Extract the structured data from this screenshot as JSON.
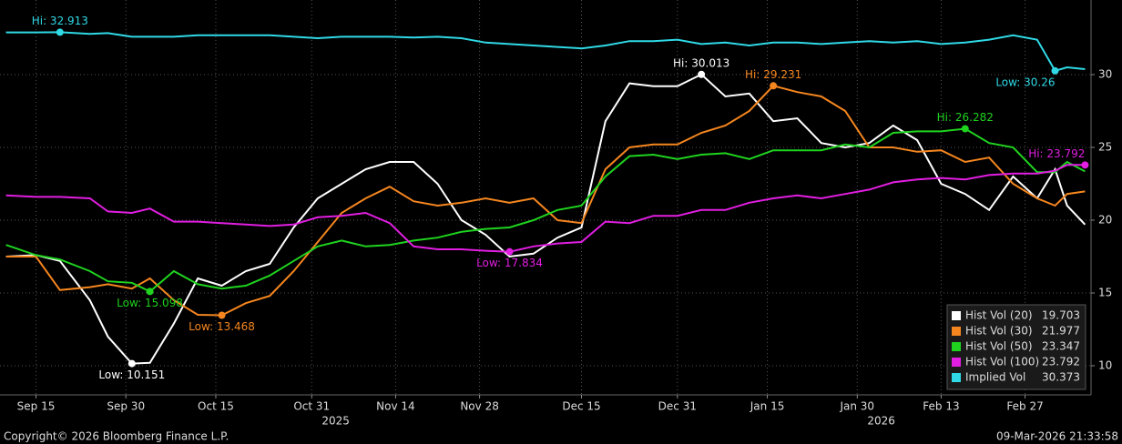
{
  "chart_data": {
    "type": "line",
    "x": [
      "2025-09-10",
      "2025-09-15",
      "2025-09-19",
      "2025-09-24",
      "2025-09-27",
      "2025-10-01",
      "2025-10-04",
      "2025-10-08",
      "2025-10-12",
      "2025-10-16",
      "2025-10-20",
      "2025-10-24",
      "2025-10-28",
      "2025-11-01",
      "2025-11-05",
      "2025-11-09",
      "2025-11-13",
      "2025-11-17",
      "2025-11-21",
      "2025-11-25",
      "2025-11-29",
      "2025-12-03",
      "2025-12-07",
      "2025-12-11",
      "2025-12-15",
      "2025-12-19",
      "2025-12-23",
      "2025-12-27",
      "2025-12-31",
      "2026-01-04",
      "2026-01-08",
      "2026-01-12",
      "2026-01-16",
      "2026-01-20",
      "2026-01-24",
      "2026-01-28",
      "2026-02-01",
      "2026-02-05",
      "2026-02-09",
      "2026-02-13",
      "2026-02-17",
      "2026-02-21",
      "2026-02-25",
      "2026-03-01",
      "2026-03-04",
      "2026-03-06",
      "2026-03-09"
    ],
    "series": [
      {
        "name": "Hist Vol (20)",
        "color": "#ffffff",
        "values": [
          17.5,
          17.6,
          17.2,
          14.5,
          12,
          10.151,
          10.2,
          12.9,
          16,
          15.5,
          16.5,
          17,
          19.5,
          21.5,
          22.5,
          23.5,
          24,
          24,
          22.5,
          20,
          19,
          17.5,
          17.7,
          18.8,
          19.5,
          26.8,
          29.4,
          29.2,
          29.2,
          30.013,
          28.5,
          28.7,
          26.8,
          27,
          25.3,
          25,
          25.3,
          26.5,
          25.5,
          22.5,
          21.8,
          20.7,
          23,
          21.5,
          23.5,
          21,
          19.703
        ]
      },
      {
        "name": "Hist Vol (30)",
        "color": "#f5861f",
        "values": [
          17.5,
          17.5,
          15.2,
          15.4,
          15.6,
          15.3,
          16,
          14.5,
          13.5,
          13.468,
          14.3,
          14.8,
          16.5,
          18.5,
          20.5,
          21.5,
          22.3,
          21.3,
          21,
          21.2,
          21.5,
          21.2,
          21.5,
          20,
          19.8,
          23.5,
          25,
          25.2,
          25.2,
          26,
          26.5,
          27.5,
          29.231,
          28.8,
          28.5,
          27.5,
          25,
          25,
          24.7,
          24.8,
          24,
          24.3,
          22.5,
          21.5,
          21,
          21.8,
          21.977
        ]
      },
      {
        "name": "Hist Vol (50)",
        "color": "#1fd31f",
        "values": [
          18.3,
          17.6,
          17.3,
          16.5,
          15.8,
          15.7,
          15.098,
          16.5,
          15.6,
          15.3,
          15.5,
          16.2,
          17.2,
          18.2,
          18.6,
          18.2,
          18.3,
          18.6,
          18.8,
          19.2,
          19.4,
          19.5,
          20,
          20.7,
          21,
          23,
          24.4,
          24.5,
          24.2,
          24.5,
          24.6,
          24.2,
          24.8,
          24.8,
          24.8,
          25.2,
          25,
          26,
          26.1,
          26.1,
          26.282,
          25.3,
          25,
          23.3,
          23.3,
          24,
          23.347
        ]
      },
      {
        "name": "Hist Vol (100)",
        "color": "#e11ee1",
        "values": [
          21.7,
          21.6,
          21.6,
          21.5,
          20.6,
          20.5,
          20.8,
          19.9,
          19.9,
          19.8,
          19.7,
          19.6,
          19.7,
          20.2,
          20.3,
          20.5,
          19.8,
          18.2,
          18,
          18,
          17.9,
          17.834,
          18.2,
          18.4,
          18.5,
          19.9,
          19.8,
          20.3,
          20.3,
          20.7,
          20.7,
          21.2,
          21.5,
          21.7,
          21.5,
          21.8,
          22.1,
          22.6,
          22.8,
          22.9,
          22.8,
          23.1,
          23.2,
          23.2,
          23.4,
          23.8,
          23.792
        ]
      },
      {
        "name": "Implied Vol",
        "color": "#2fd9e6",
        "values": [
          32.9,
          32.9,
          32.913,
          32.8,
          32.85,
          32.6,
          32.6,
          32.6,
          32.7,
          32.7,
          32.7,
          32.7,
          32.6,
          32.5,
          32.6,
          32.6,
          32.6,
          32.55,
          32.6,
          32.5,
          32.2,
          32.1,
          32,
          31.9,
          31.8,
          32,
          32.3,
          32.3,
          32.4,
          32.1,
          32.2,
          32,
          32.2,
          32.2,
          32.1,
          32.2,
          32.3,
          32.2,
          32.3,
          32.1,
          32.2,
          32.4,
          32.7,
          32.4,
          30.26,
          30.5,
          30.373
        ]
      }
    ],
    "annotations": [
      {
        "series": 4,
        "x": "2025-09-19",
        "value": 32.913,
        "label": "Hi: 32.913"
      },
      {
        "series": 4,
        "x": "2026-03-04",
        "value": 30.26,
        "label": "Low: 30.26"
      },
      {
        "series": 0,
        "x": "2026-01-04",
        "value": 30.013,
        "label": "Hi: 30.013"
      },
      {
        "series": 0,
        "x": "2025-10-01",
        "value": 10.151,
        "label": "Low: 10.151"
      },
      {
        "series": 1,
        "x": "2026-01-16",
        "value": 29.231,
        "label": "Hi: 29.231"
      },
      {
        "series": 1,
        "x": "2025-10-16",
        "value": 13.468,
        "label": "Low: 13.468"
      },
      {
        "series": 2,
        "x": "2026-02-17",
        "value": 26.282,
        "label": "Hi: 26.282"
      },
      {
        "series": 2,
        "x": "2025-10-04",
        "value": 15.098,
        "label": "Low: 15.098"
      },
      {
        "series": 3,
        "x": "2026-03-09",
        "value": 23.792,
        "label": "Hi: 23.792"
      },
      {
        "series": 3,
        "x": "2025-12-03",
        "value": 17.834,
        "label": "Low: 17.834"
      }
    ],
    "xlim": [
      "2025-09-09",
      "2026-03-10"
    ],
    "xticks": [
      {
        "value": "2025-09-15",
        "label": "Sep 15"
      },
      {
        "value": "2025-09-30",
        "label": "Sep 30"
      },
      {
        "value": "2025-10-15",
        "label": "Oct 15"
      },
      {
        "value": "2025-10-31",
        "label": "Oct 31"
      },
      {
        "value": "2025-11-14",
        "label": "Nov 14"
      },
      {
        "value": "2025-11-28",
        "label": "Nov 28"
      },
      {
        "value": "2025-12-15",
        "label": "Dec 15"
      },
      {
        "value": "2025-12-31",
        "label": "Dec 31"
      },
      {
        "value": "2026-01-15",
        "label": "Jan 15"
      },
      {
        "value": "2026-01-30",
        "label": "Jan 30"
      },
      {
        "value": "2026-02-13",
        "label": "Feb 13"
      },
      {
        "value": "2026-02-27",
        "label": "Feb 27"
      }
    ],
    "x_year_labels": [
      {
        "value": "2025-11-04",
        "label": "2025"
      },
      {
        "value": "2026-02-03",
        "label": "2026"
      }
    ],
    "ylim": [
      8,
      35.125
    ],
    "yticks": [
      10,
      15,
      20,
      25,
      30
    ],
    "grid": true,
    "legend": "lower right",
    "copyright": "Copyright© 2026 Bloomberg Finance L.P.",
    "timestamp": "09-Mar-2026 21:33:58"
  }
}
